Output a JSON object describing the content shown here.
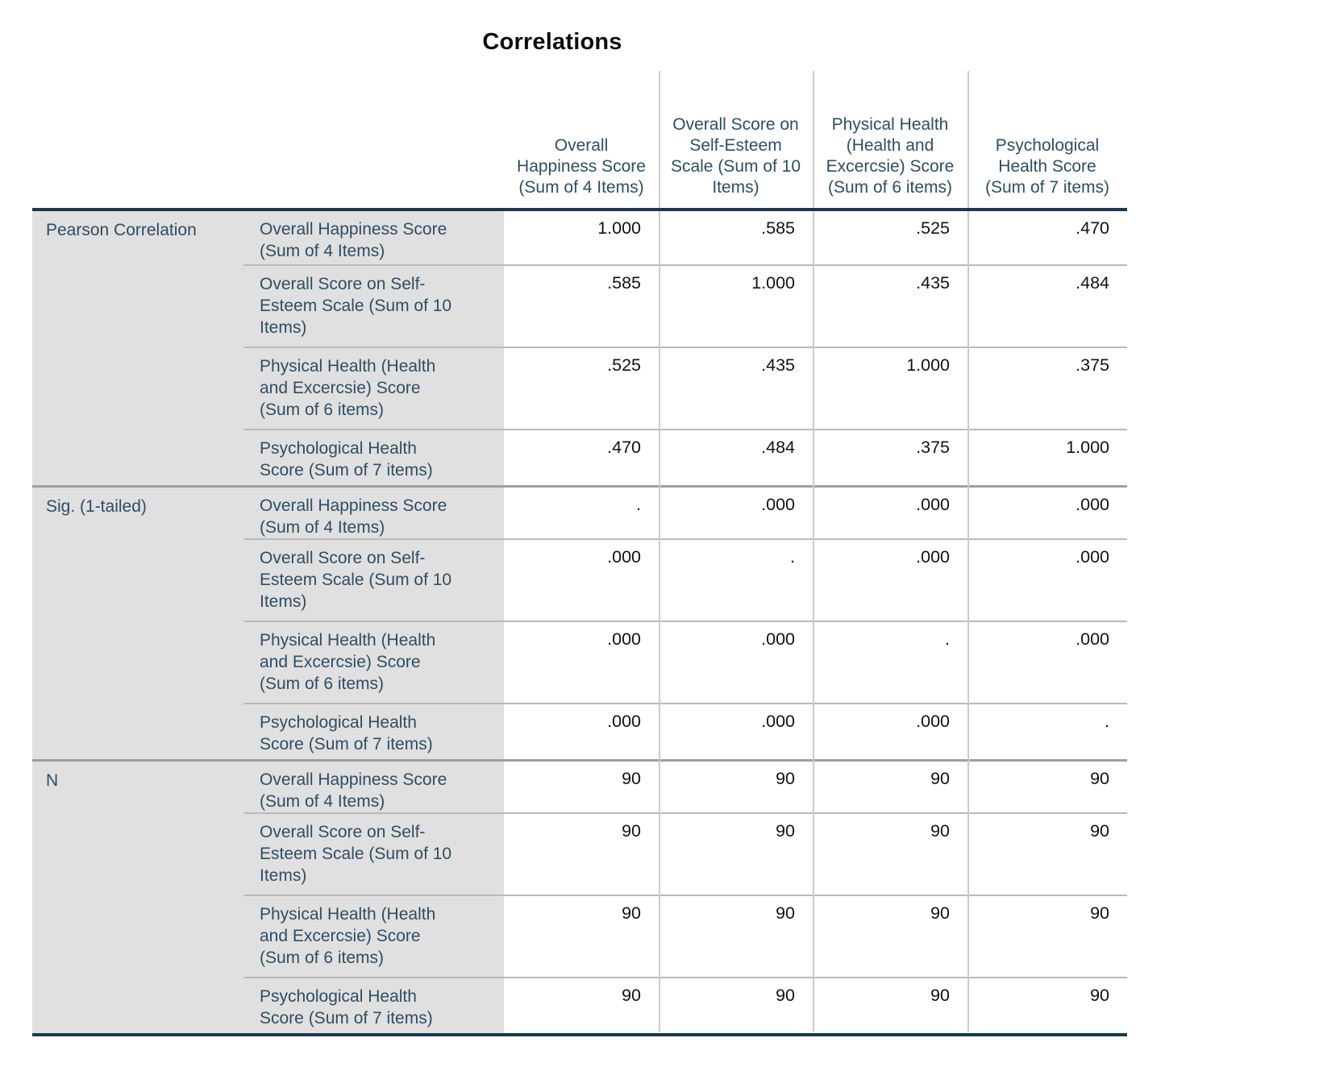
{
  "title": "Correlations",
  "table": {
    "column_headers": [
      "Overall Happiness Score (Sum of 4 Items)",
      "Overall Score on Self-Esteem Scale (Sum of 10 Items)",
      "Physical Health (Health and Excercsie) Score (Sum of 6 items)",
      "Psychological Health Score (Sum of 7 items)"
    ],
    "groups": [
      {
        "label": "Pearson Correlation",
        "rows": [
          {
            "label": "Overall Happiness Score (Sum of 4 Items)",
            "values": [
              "1.000",
              ".585",
              ".525",
              ".470"
            ]
          },
          {
            "label": "Overall Score on Self-Esteem Scale (Sum of 10 Items)",
            "values": [
              ".585",
              "1.000",
              ".435",
              ".484"
            ]
          },
          {
            "label": "Physical Health (Health and Excercsie) Score (Sum of 6 items)",
            "values": [
              ".525",
              ".435",
              "1.000",
              ".375"
            ]
          },
          {
            "label": "Psychological Health Score (Sum of 7 items)",
            "values": [
              ".470",
              ".484",
              ".375",
              "1.000"
            ]
          }
        ]
      },
      {
        "label": "Sig. (1-tailed)",
        "rows": [
          {
            "label": "Overall Happiness Score (Sum of 4 Items)",
            "values": [
              ".",
              ".000",
              ".000",
              ".000"
            ]
          },
          {
            "label": "Overall Score on Self-Esteem Scale (Sum of 10 Items)",
            "values": [
              ".000",
              ".",
              ".000",
              ".000"
            ]
          },
          {
            "label": "Physical Health (Health and Excercsie) Score (Sum of 6 items)",
            "values": [
              ".000",
              ".000",
              ".",
              ".000"
            ]
          },
          {
            "label": "Psychological Health Score (Sum of 7 items)",
            "values": [
              ".000",
              ".000",
              ".000",
              "."
            ]
          }
        ]
      },
      {
        "label": "N",
        "rows": [
          {
            "label": "Overall Happiness Score (Sum of 4 Items)",
            "values": [
              "90",
              "90",
              "90",
              "90"
            ]
          },
          {
            "label": "Overall Score on Self-Esteem Scale (Sum of 10 Items)",
            "values": [
              "90",
              "90",
              "90",
              "90"
            ]
          },
          {
            "label": "Physical Health (Health and Excercsie) Score (Sum of 6 items)",
            "values": [
              "90",
              "90",
              "90",
              "90"
            ]
          },
          {
            "label": "Psychological Health Score (Sum of 7 items)",
            "values": [
              "90",
              "90",
              "90",
              "90"
            ]
          }
        ]
      }
    ]
  },
  "colors": {
    "label_text": "#2d4e64",
    "stub_background": "#e0e0e0",
    "dark_rule": "#1b3950",
    "group_separator": "#9f9f9f",
    "row_separator": "#b9b9b9",
    "column_separator": "#cbcbcb",
    "value_text": "#121212",
    "title_text": "#0d0d0d"
  }
}
